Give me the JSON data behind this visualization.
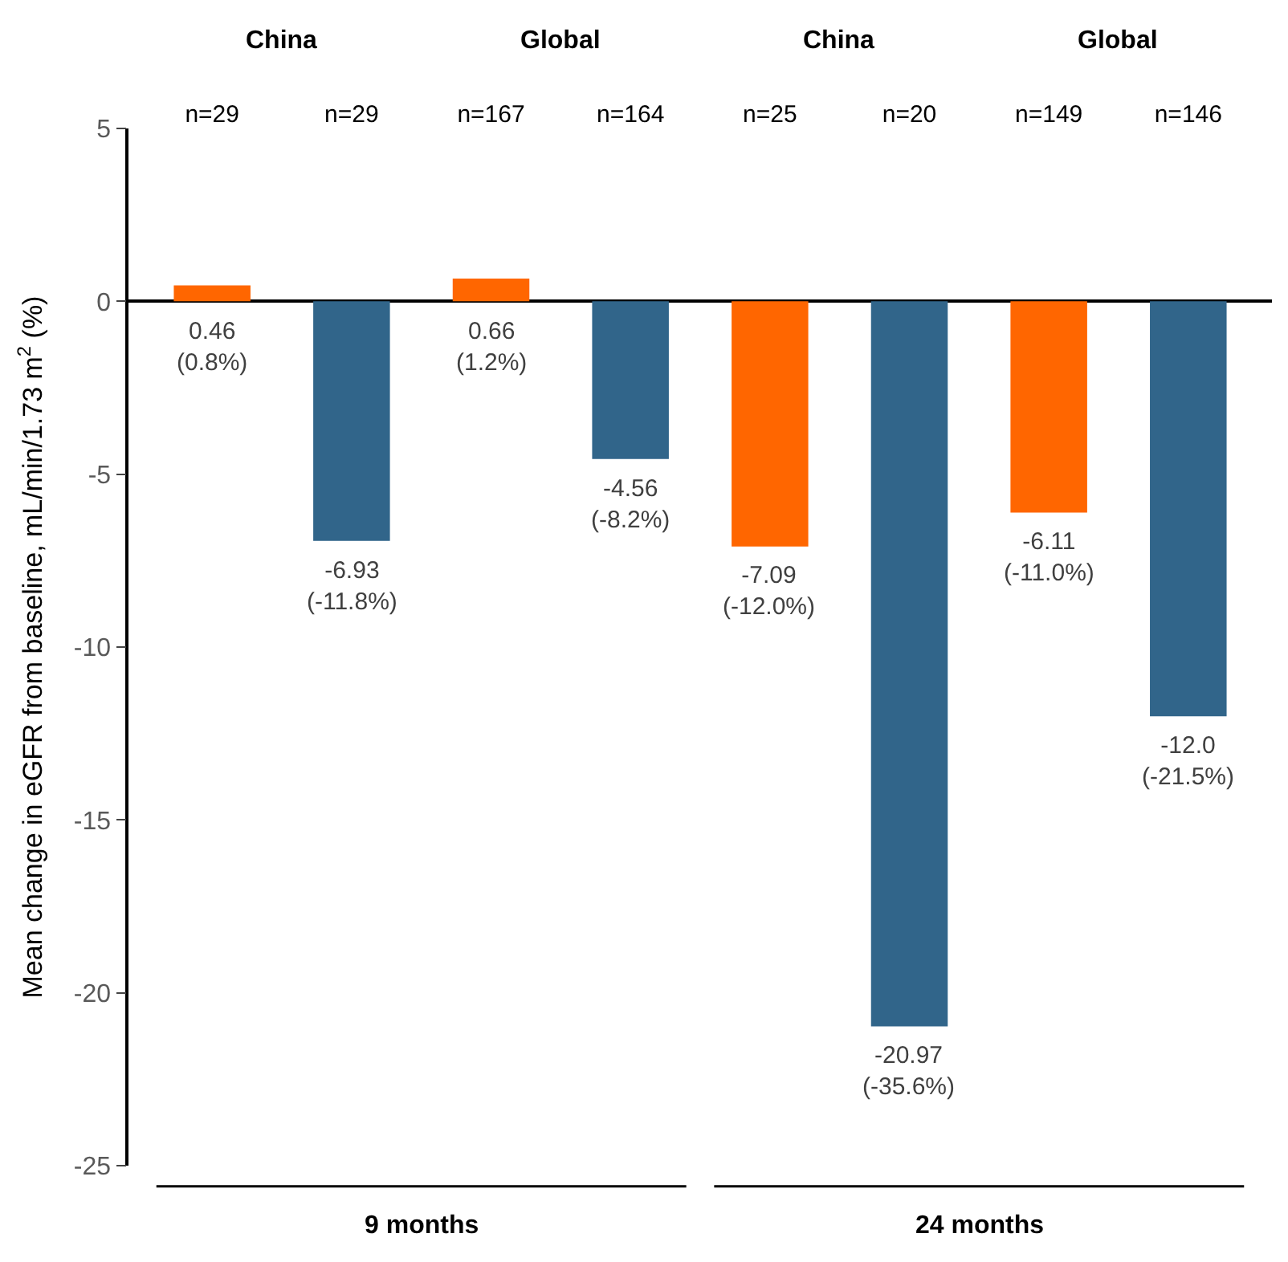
{
  "chart_data": {
    "type": "bar",
    "ylabel": "Mean change in eGFR from baseline, mL/min/1.73 m$^{2}$ (%)",
    "categories": [
      "n=29",
      "n=29",
      "n=167",
      "n=164",
      "n=25",
      "n=20",
      "n=149",
      "n=146"
    ],
    "values": [
      0.46,
      -6.93,
      0.66,
      -4.56,
      -7.09,
      -20.97,
      -6.11,
      -12.0
    ],
    "colors": [
      "#ff6600",
      "#31658a",
      "#ff6600",
      "#31658a",
      "#ff6600",
      "#31658a",
      "#ff6600",
      "#31658a"
    ],
    "value_labels": [
      "0.46\n(0.8%)",
      "-6.93\n(-11.8%)",
      "0.66\n(1.2%)",
      "-4.56\n(-8.2%)",
      "-7.09\n(-12.0%)",
      "-20.97\n(-35.6%)",
      "-6.11\n(-11.0%)",
      "-12.0\n(-21.5%)"
    ],
    "ylim": [
      -25,
      5
    ],
    "yticks": [
      -25,
      -20,
      -15,
      -10,
      -5,
      0,
      5
    ],
    "legend": false,
    "annotations": [
      "China",
      "Global",
      "China",
      "Global",
      "9 months",
      "24 months"
    ]
  }
}
